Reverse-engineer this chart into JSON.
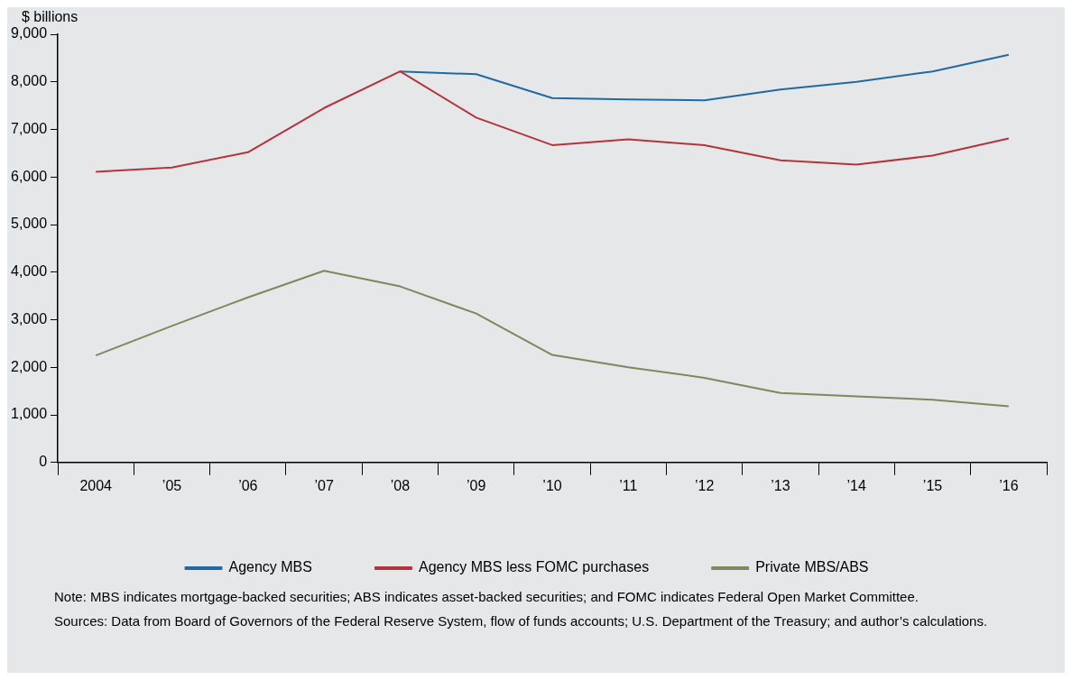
{
  "chart_data": {
    "type": "line",
    "ylabel": "$ billions",
    "categories": [
      "2004",
      "’05",
      "’06",
      "’07",
      "’08",
      "’09",
      "’10",
      "’11",
      "’12",
      "’13",
      "’14",
      "’15",
      "’16"
    ],
    "series": [
      {
        "name": "Agency MBS",
        "color": "#1f6aa5",
        "values": [
          null,
          null,
          null,
          null,
          8220,
          8160,
          7660,
          7630,
          7610,
          7840,
          8000,
          8220,
          8570
        ]
      },
      {
        "name": "Agency MBS less FOMC purchases",
        "color": "#b5343c",
        "values": [
          6110,
          6200,
          6520,
          7450,
          8220,
          7250,
          6670,
          6790,
          6670,
          6350,
          6260,
          6450,
          6810
        ]
      },
      {
        "name": "Private MBS/ABS",
        "color": "#7a8a5c",
        "values": [
          2250,
          2870,
          3470,
          4030,
          3700,
          3130,
          2260,
          2000,
          1780,
          1460,
          1390,
          1320,
          1180
        ]
      }
    ],
    "ylim": [
      0,
      9000
    ],
    "yticks": [
      {
        "value": 0,
        "label": "0"
      },
      {
        "value": 1000,
        "label": "1,000"
      },
      {
        "value": 2000,
        "label": "2,000"
      },
      {
        "value": 3000,
        "label": "3,000"
      },
      {
        "value": 4000,
        "label": "4,000"
      },
      {
        "value": 5000,
        "label": "5,000"
      },
      {
        "value": 6000,
        "label": "6,000"
      },
      {
        "value": 7000,
        "label": "7,000"
      },
      {
        "value": 8000,
        "label": "8,000"
      },
      {
        "value": 9000,
        "label": "9,000"
      }
    ],
    "grid": false,
    "legend": "bottom",
    "marker": "none",
    "line_style": "solid",
    "annotations": [
      "Note: MBS indicates mortgage-backed securities; ABS indicates asset-backed securities; and FOMC indicates Federal Open Market Committee.",
      "Sources: Data from Board of Governors of the Federal Reserve System, flow of funds accounts; U.S. Department of the Treasury; and author’s calculations."
    ]
  }
}
